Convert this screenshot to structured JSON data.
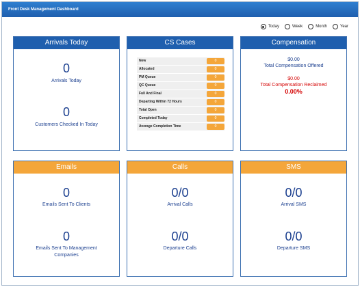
{
  "window": {
    "title": "Front Desk Management Dashboard"
  },
  "period": {
    "options": [
      "Today",
      "Week",
      "Month",
      "Year"
    ],
    "selected": "Today"
  },
  "arrivals": {
    "title": "Arrivals Today",
    "arrivals_value": "0",
    "arrivals_label": "Arrivals Today",
    "checked_in_value": "0",
    "checked_in_label": "Customers Checked In Today"
  },
  "cs_cases": {
    "title": "CS Cases",
    "rows": [
      {
        "label": "New",
        "value": "0"
      },
      {
        "label": "Allocated",
        "value": "0"
      },
      {
        "label": "PM Queue",
        "value": "0"
      },
      {
        "label": "QC Queue",
        "value": "0"
      },
      {
        "label": "Full And Final",
        "value": "0"
      },
      {
        "label": "Departing Within 72 Hours",
        "value": "0"
      },
      {
        "label": "Total Open",
        "value": "0"
      },
      {
        "label": "Completed Today",
        "value": "0"
      },
      {
        "label": "Average Completion Time",
        "value": "0"
      }
    ]
  },
  "compensation": {
    "title": "Compensation",
    "offered_amount": "$0.00",
    "offered_label": "Total Compensation Offered",
    "reclaimed_amount": "$0.00",
    "reclaimed_label": "Total Compensation Reclaimed",
    "reclaimed_pct": "0.00%"
  },
  "emails": {
    "title": "Emails",
    "clients_value": "0",
    "clients_label": "Emails Sent To Clients",
    "mgmt_value": "0",
    "mgmt_label": "Emails Sent To Management Companies"
  },
  "calls": {
    "title": "Calls",
    "arrival_value": "0/0",
    "arrival_label": "Arrival Calls",
    "departure_value": "0/0",
    "departure_label": "Departure Calls"
  },
  "sms": {
    "title": "SMS",
    "arrival_value": "0/0",
    "arrival_label": "Arrival SMS",
    "departure_value": "0/0",
    "departure_label": "Departure SMS"
  },
  "colors": {
    "header_blue": "#1f5fae",
    "header_orange": "#f4a63a",
    "text_blue": "#1b3f8f",
    "alert_red": "#d40000"
  }
}
